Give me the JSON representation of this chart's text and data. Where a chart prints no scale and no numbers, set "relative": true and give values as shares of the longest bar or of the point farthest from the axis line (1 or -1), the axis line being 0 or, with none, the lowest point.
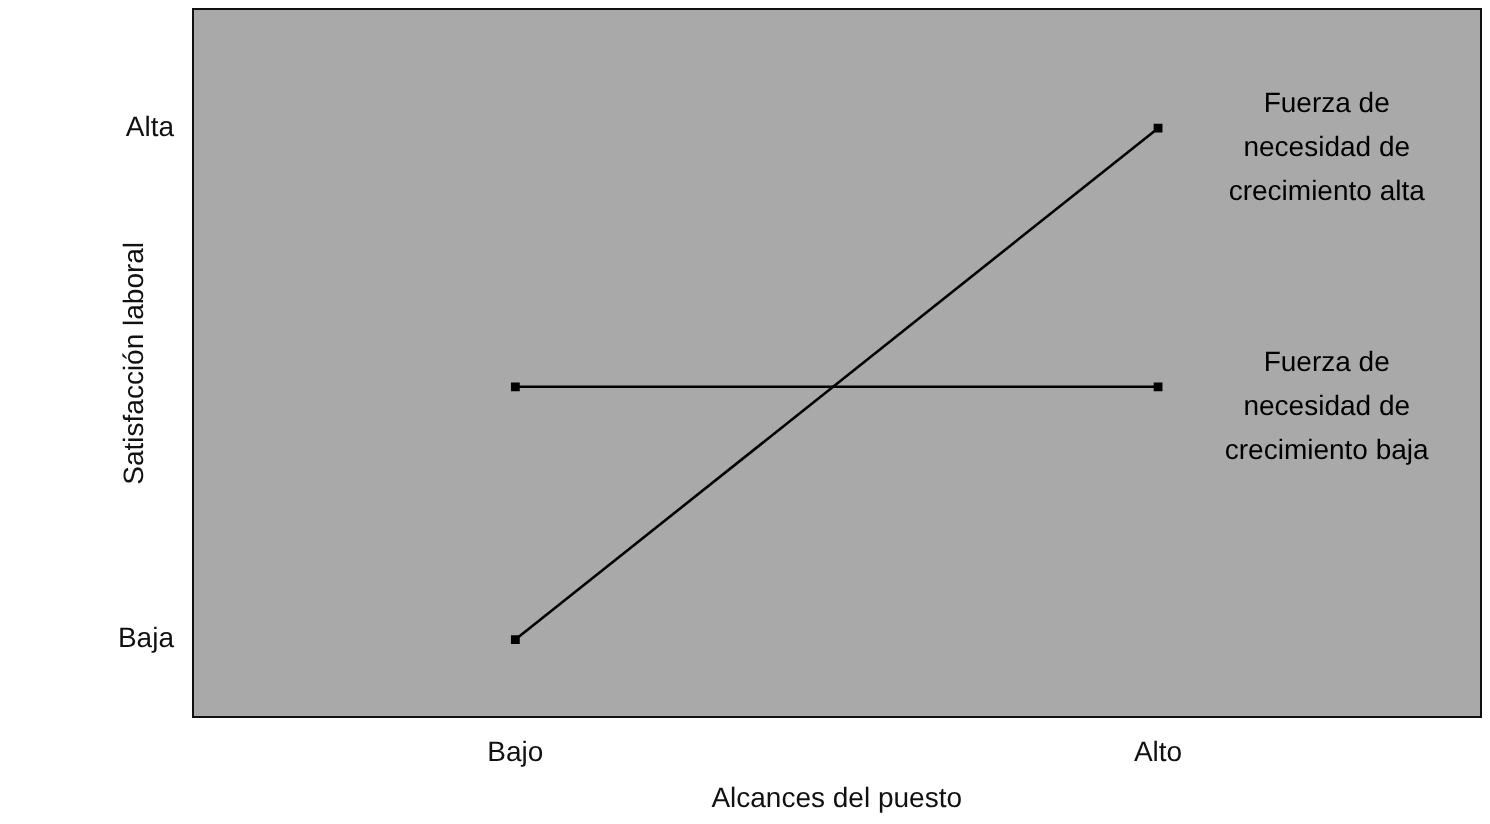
{
  "chart_data": {
    "type": "line",
    "xlabel": "Alcances del puesto",
    "ylabel": "Satisfacción laboral",
    "categories": [
      "Bajo",
      "Alto"
    ],
    "relative": true,
    "series": [
      {
        "name": "Fuerza de necesidad de crecimiento alta",
        "color": "#000000",
        "values": [
          0.13,
          1
        ]
      },
      {
        "name": "Fuerza de necesidad de crecimiento baja",
        "color": "#000000",
        "values": [
          0.56,
          0.56
        ]
      }
    ],
    "annotations": [
      "Alta",
      "Baja"
    ],
    "grid": false,
    "legend": false,
    "marker": "square",
    "line_style": "solid"
  }
}
